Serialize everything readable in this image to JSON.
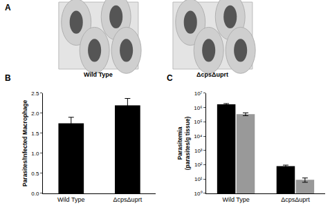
{
  "panel_a": {
    "annotations": [
      "A"
    ],
    "captions": [
      "Wild Type",
      "ΔcpsΔuprt"
    ]
  },
  "chart_data": [
    {
      "type": "bar",
      "annotations": [
        "B"
      ],
      "categories": [
        "Wild Type",
        "ΔcpsΔuprt"
      ],
      "values": [
        1.75,
        2.2
      ],
      "error": [
        0.15,
        0.17
      ],
      "color": "#000000",
      "ylabel": "Parasites/Infected Macrophage",
      "ylim": [
        0,
        2.5
      ],
      "yticks": [
        {
          "value": 0,
          "label": "0.0"
        },
        0.5,
        {
          "value": 1,
          "label": "1.0"
        },
        1.5,
        {
          "value": 2,
          "label": "2.0"
        },
        2.5
      ],
      "grid": false
    },
    {
      "type": "bar",
      "annotations": [
        "C"
      ],
      "categories": [
        "Wild Type",
        "ΔcpsΔuprt"
      ],
      "series": [
        {
          "color": "#000000",
          "values": [
            1700000,
            80
          ],
          "error": [
            200000,
            15
          ]
        },
        {
          "color": "#999999",
          "values": [
            350000,
            9
          ],
          "error": [
            80000,
            3
          ]
        }
      ],
      "ylabel": "Parasitemia\n(parasites/g tissue)",
      "log": "y",
      "ylim": [
        1,
        10000000
      ],
      "yticks": [
        {
          "value": 1,
          "label": "10⁰"
        },
        {
          "value": 10,
          "label": "10¹"
        },
        {
          "value": 100,
          "label": "10²"
        },
        {
          "value": 1000,
          "label": "10³"
        },
        {
          "value": 10000,
          "label": "10⁴"
        },
        {
          "value": 100000,
          "label": "10⁵"
        },
        {
          "value": 1000000,
          "label": "10⁶"
        },
        {
          "value": 10000000,
          "label": "10⁷"
        }
      ],
      "grid": false
    }
  ]
}
